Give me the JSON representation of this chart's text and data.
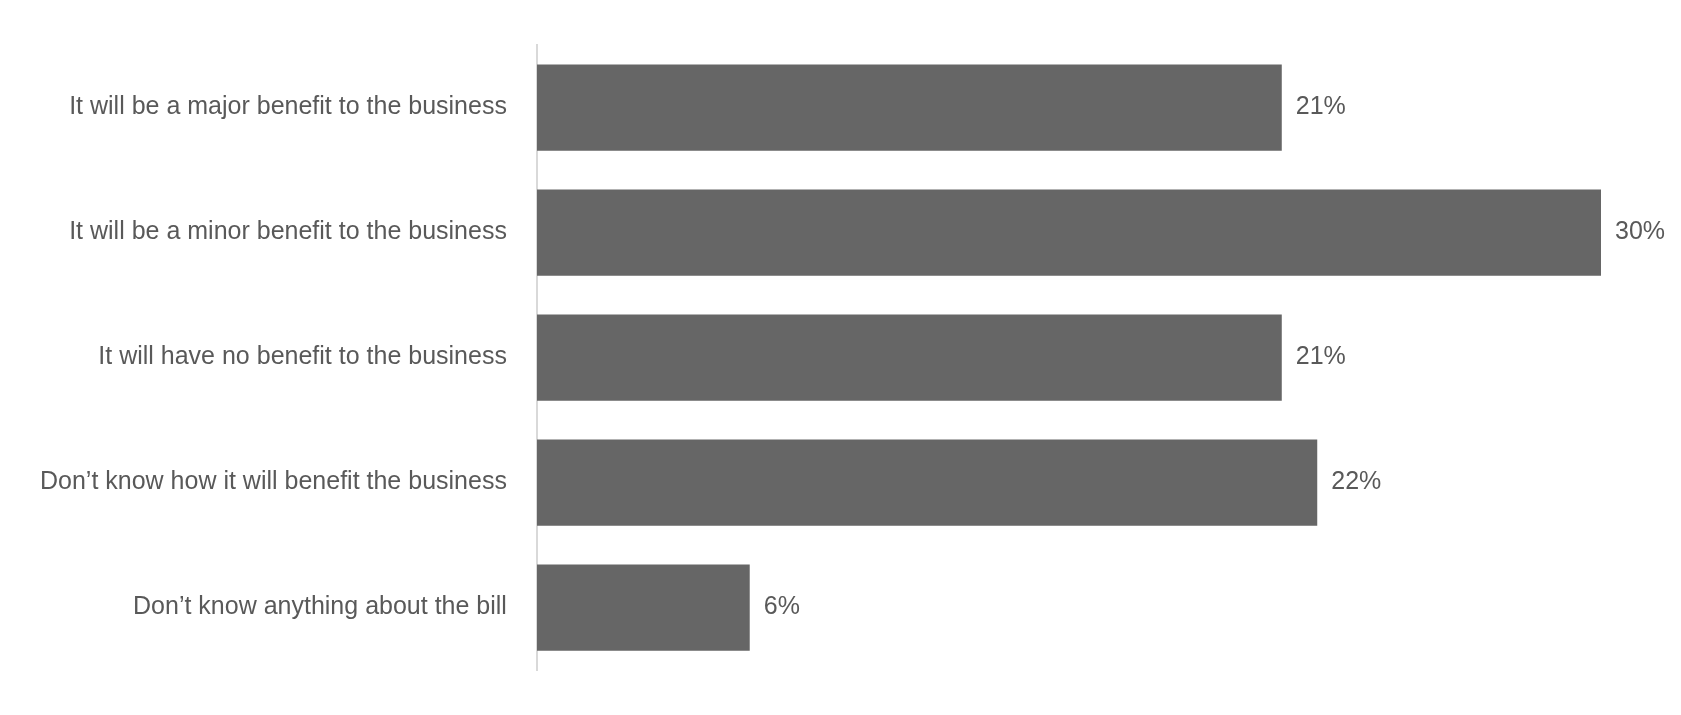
{
  "chart_data": {
    "type": "bar",
    "orientation": "horizontal",
    "categories": [
      "It will be a major benefit to the business",
      "It will be a minor benefit to the business",
      "It will have no benefit to the business",
      "Don’t know how it will benefit the business",
      "Don’t know anything about the bill"
    ],
    "values": [
      21,
      30,
      21,
      22,
      6
    ],
    "value_labels": [
      "21%",
      "30%",
      "21%",
      "22%",
      "6%"
    ],
    "color": "#666666",
    "grid": false,
    "legend": false,
    "tick_labels": "y"
  }
}
